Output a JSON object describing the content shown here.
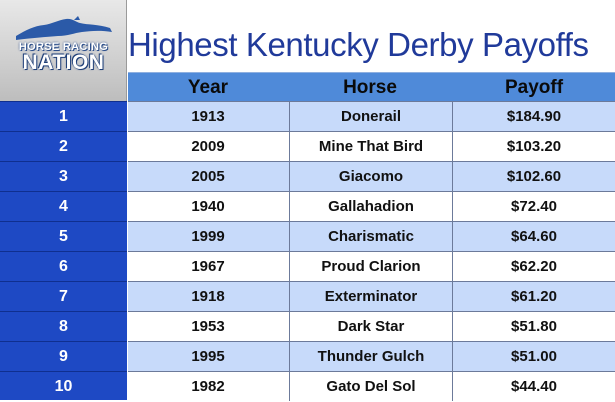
{
  "logo": {
    "line1": "HORSE RACING",
    "line2": "NATION",
    "icon": "horse-silhouette-icon"
  },
  "title": "Highest Kentucky Derby Payoffs",
  "columns": [
    "Year",
    "Horse",
    "Payoff"
  ],
  "rows": [
    {
      "rank": "1",
      "year": "1913",
      "horse": "Donerail",
      "payoff": "$184.90"
    },
    {
      "rank": "2",
      "year": "2009",
      "horse": "Mine That Bird",
      "payoff": "$103.20"
    },
    {
      "rank": "3",
      "year": "2005",
      "horse": "Giacomo",
      "payoff": "$102.60"
    },
    {
      "rank": "4",
      "year": "1940",
      "horse": "Gallahadion",
      "payoff": "$72.40"
    },
    {
      "rank": "5",
      "year": "1999",
      "horse": "Charismatic",
      "payoff": "$64.60"
    },
    {
      "rank": "6",
      "year": "1967",
      "horse": "Proud Clarion",
      "payoff": "$62.20"
    },
    {
      "rank": "7",
      "year": "1918",
      "horse": "Exterminator",
      "payoff": "$61.20"
    },
    {
      "rank": "8",
      "year": "1953",
      "horse": "Dark Star",
      "payoff": "$51.80"
    },
    {
      "rank": "9",
      "year": "1995",
      "horse": "Thunder Gulch",
      "payoff": "$51.00"
    },
    {
      "rank": "10",
      "year": "1982",
      "horse": "Gato Del Sol",
      "payoff": "$44.40"
    }
  ],
  "colors": {
    "title": "#203a9a",
    "header": "#4f8ad9",
    "rank_column": "#1e49c4",
    "row_shade": "#c7dafa"
  }
}
